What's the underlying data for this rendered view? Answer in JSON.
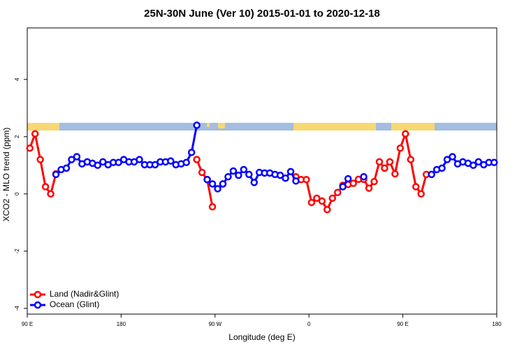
{
  "chart_data": {
    "type": "line",
    "title": "25N-30N June (Ver 10)   2015-01-01 to 2020-12-18",
    "xlabel": "Longitude (deg E)",
    "ylabel": "XCO2 - MLO trend (ppm)",
    "xlim": [
      90,
      540
    ],
    "ylim": [
      -4.2,
      5.8
    ],
    "xticks": [
      {
        "value": 90,
        "label": "90 E"
      },
      {
        "value": 180,
        "label": "180"
      },
      {
        "value": 270,
        "label": "90 W"
      },
      {
        "value": 360,
        "label": "0"
      },
      {
        "value": 450,
        "label": "90 E"
      },
      {
        "value": 540,
        "label": "180"
      }
    ],
    "yticks": [
      -4,
      -2,
      0,
      2,
      4
    ],
    "grid": false,
    "legend": "bottom-left",
    "series": [
      {
        "name": "Land (Nadir&Glint)",
        "color": "#ff0000",
        "x": [
          92.5,
          97.5,
          102.5,
          107.5,
          112.5,
          117.5,
          122.5,
          252.5,
          257.5,
          262.5,
          267.5,
          272.5,
          277.5,
          282.5,
          347.5,
          352.5,
          357.5,
          362.5,
          367.5,
          372.5,
          377.5,
          382.5,
          387.5,
          392.5,
          397.5,
          402.5,
          407.5,
          412.5,
          417.5,
          422.5,
          427.5,
          432.5,
          437.5,
          442.5,
          447.5,
          452.5,
          457.5,
          462.5,
          467.5,
          472.5
        ],
        "values": [
          1.6,
          2.1,
          1.2,
          0.25,
          0,
          0.7,
          null,
          1.2,
          0.75,
          0.5,
          -0.45,
          null,
          0.35,
          null,
          0.6,
          0.5,
          0.5,
          -0.3,
          -0.15,
          -0.25,
          -0.55,
          -0.15,
          0.05,
          0.3,
          0.33,
          0.37,
          0.51,
          0.51,
          0.2,
          0.43,
          1.12,
          0.9,
          1.12,
          0.7,
          1.6,
          2.1,
          1.2,
          0.25,
          0,
          0.68
        ]
      },
      {
        "name": "Ocean (Glint)",
        "color": "#0000ff",
        "x": [
          117.5,
          122.5,
          127.5,
          132.5,
          137.5,
          142.5,
          147.5,
          152.5,
          157.5,
          162.5,
          167.5,
          172.5,
          177.5,
          182.5,
          187.5,
          192.5,
          197.5,
          202.5,
          207.5,
          212.5,
          217.5,
          222.5,
          227.5,
          232.5,
          237.5,
          242.5,
          247.5,
          252.5,
          257.5,
          262.5,
          267.5,
          272.5,
          277.5,
          282.5,
          287.5,
          292.5,
          297.5,
          302.5,
          307.5,
          312.5,
          317.5,
          322.5,
          327.5,
          332.5,
          337.5,
          342.5,
          347.5,
          352.5,
          392.5,
          397.5,
          402.5,
          412.5,
          417.5,
          477.5,
          482.5,
          487.5,
          492.5,
          497.5,
          502.5,
          507.5,
          512.5,
          517.5,
          522.5,
          527.5,
          532.5,
          537.5
        ],
        "values": [
          0.68,
          0.85,
          0.9,
          1.2,
          1.3,
          1.05,
          1.12,
          1.07,
          1.0,
          1.12,
          1.02,
          1.1,
          1.1,
          1.2,
          1.12,
          1.12,
          1.2,
          1.02,
          1.02,
          1.02,
          1.12,
          1.12,
          1.15,
          1.02,
          1.05,
          1.1,
          1.45,
          2.4,
          null,
          0.5,
          0.35,
          0.18,
          0.35,
          0.6,
          0.8,
          0.65,
          0.85,
          0.68,
          0.4,
          0.75,
          0.73,
          0.73,
          0.68,
          0.65,
          0.55,
          0.78,
          0.45,
          null,
          0.25,
          0.53,
          null,
          0.6,
          null,
          0.68,
          0.85,
          0.9,
          1.2,
          1.3,
          1.05,
          1.12,
          1.07,
          1.0,
          1.12,
          1.02,
          1.1,
          1.1
        ]
      }
    ]
  }
}
